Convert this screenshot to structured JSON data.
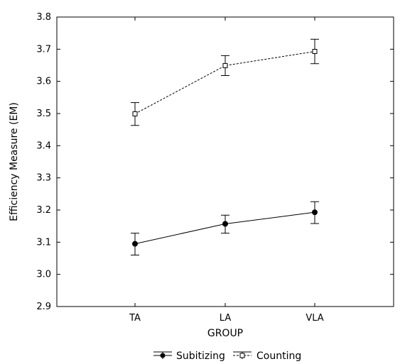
{
  "chart_data": {
    "type": "line",
    "title": "",
    "xlabel": "GROUP",
    "ylabel": "Efficiency Measure (EM)",
    "categories": [
      "TA",
      "LA",
      "VLA"
    ],
    "ylim": [
      2.9,
      3.8
    ],
    "yticks": [
      "2.9",
      "3.0",
      "3.1",
      "3.2",
      "3.3",
      "3.4",
      "3.5",
      "3.6",
      "3.7",
      "3.8"
    ],
    "grid": false,
    "legend_position": "bottom",
    "series": [
      {
        "name": "Subitizing",
        "values": [
          3.095,
          3.157,
          3.193
        ],
        "error_low": [
          3.06,
          3.128,
          3.158
        ],
        "error_high": [
          3.128,
          3.184,
          3.226
        ],
        "line_style": "solid",
        "marker": "filled-circle",
        "color": "#000000"
      },
      {
        "name": "Counting",
        "values": [
          3.499,
          3.649,
          3.693
        ],
        "error_low": [
          3.463,
          3.618,
          3.655
        ],
        "error_high": [
          3.534,
          3.68,
          3.731
        ],
        "line_style": "dashed",
        "marker": "open-square",
        "color": "#000000"
      }
    ]
  }
}
